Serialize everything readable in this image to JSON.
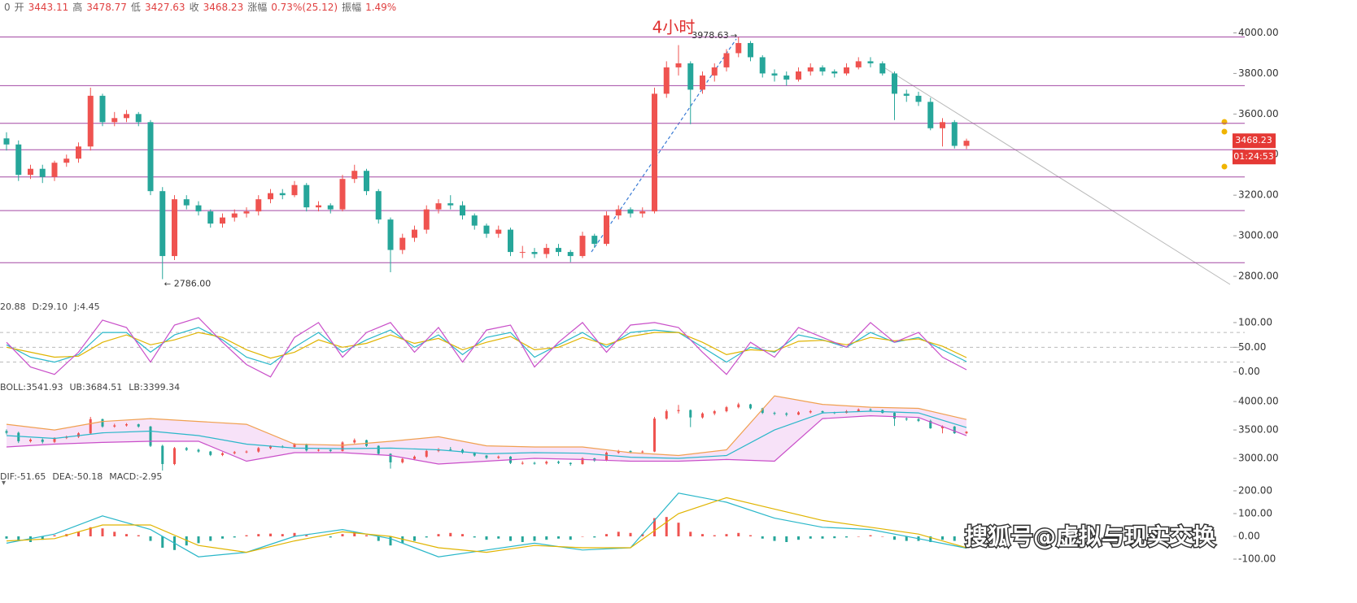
{
  "header_prefix": "0",
  "header": [
    {
      "label": "开",
      "value": 3443.11
    },
    {
      "label": "高",
      "value": 3478.77
    },
    {
      "label": "低",
      "value": 3427.63
    },
    {
      "label": "收",
      "value": 3468.23
    },
    {
      "label": "涨幅",
      "value": "0.73%(25.12)"
    },
    {
      "label": "振幅",
      "value": "1.49%"
    }
  ],
  "last_price": 3468.23,
  "countdown": "01:24:53",
  "watermark": "搜狐号@虚拟与现实交换",
  "chart_data": [
    {
      "type": "candlestick",
      "title": "4小时",
      "up_color": "#ef5350",
      "down_color": "#26a69a",
      "open": [
        3480,
        3450,
        3300,
        3330,
        3290,
        3360,
        3380,
        3440,
        3690,
        3560,
        3580,
        3600,
        3560,
        3220,
        2900,
        3180,
        3150,
        3120,
        3060,
        3090,
        3110,
        3120,
        3180,
        3210,
        3200,
        3250,
        3140,
        3150,
        3130,
        3280,
        3320,
        3220,
        3080,
        2930,
        2990,
        3030,
        3130,
        3160,
        3150,
        3100,
        3050,
        3010,
        3030,
        2920,
        2920,
        2910,
        2940,
        2920,
        2900,
        3000,
        2960,
        3100,
        3130,
        3110,
        3120,
        3700,
        3830,
        3850,
        3720,
        3790,
        3830,
        3900,
        3950,
        3880,
        3800,
        3790,
        3770,
        3810,
        3830,
        3810,
        3800,
        3830,
        3860,
        3850,
        3800,
        3700,
        3690,
        3660,
        3530,
        3560,
        3443.11
      ],
      "high": [
        3510,
        3470,
        3350,
        3350,
        3370,
        3400,
        3460,
        3730,
        3700,
        3610,
        3620,
        3610,
        3570,
        3240,
        3200,
        3200,
        3170,
        3130,
        3110,
        3130,
        3140,
        3200,
        3230,
        3230,
        3270,
        3260,
        3170,
        3160,
        3300,
        3350,
        3330,
        3230,
        3090,
        3010,
        3050,
        3150,
        3180,
        3200,
        3170,
        3110,
        3060,
        3050,
        3040,
        2950,
        2940,
        2960,
        2960,
        2930,
        3020,
        3010,
        3120,
        3150,
        3140,
        3140,
        3730,
        3860,
        3940,
        3860,
        3810,
        3850,
        3920,
        3978.63,
        3960,
        3890,
        3820,
        3810,
        3830,
        3850,
        3840,
        3820,
        3850,
        3880,
        3880,
        3860,
        3810,
        3720,
        3710,
        3680,
        3580,
        3570,
        3478.77
      ],
      "low": [
        3420,
        3270,
        3280,
        3260,
        3270,
        3340,
        3360,
        3420,
        3540,
        3540,
        3560,
        3540,
        3200,
        2786,
        2880,
        3130,
        3100,
        3040,
        3040,
        3070,
        3090,
        3100,
        3160,
        3180,
        3190,
        3120,
        3120,
        3110,
        3120,
        3260,
        3200,
        3060,
        2820,
        2910,
        2970,
        3010,
        3110,
        3130,
        3080,
        3030,
        2990,
        2990,
        2900,
        2890,
        2890,
        2890,
        2900,
        2870,
        2890,
        2940,
        2950,
        3080,
        3090,
        3090,
        3110,
        3680,
        3790,
        3550,
        3700,
        3760,
        3810,
        3880,
        3860,
        3780,
        3760,
        3740,
        3760,
        3790,
        3790,
        3780,
        3790,
        3820,
        3830,
        3790,
        3570,
        3660,
        3640,
        3520,
        3440,
        3430,
        3427.63
      ],
      "close": [
        3450,
        3300,
        3330,
        3290,
        3360,
        3380,
        3440,
        3690,
        3560,
        3580,
        3600,
        3560,
        3220,
        2900,
        3180,
        3150,
        3120,
        3060,
        3090,
        3110,
        3120,
        3180,
        3210,
        3200,
        3250,
        3140,
        3150,
        3130,
        3280,
        3320,
        3220,
        3080,
        2930,
        2990,
        3030,
        3130,
        3160,
        3150,
        3100,
        3050,
        3010,
        3030,
        2920,
        2920,
        2910,
        2940,
        2920,
        2900,
        3000,
        2960,
        3100,
        3130,
        3110,
        3120,
        3700,
        3830,
        3850,
        3720,
        3790,
        3830,
        3900,
        3950,
        3880,
        3800,
        3790,
        3770,
        3810,
        3830,
        3810,
        3800,
        3830,
        3860,
        3850,
        3800,
        3700,
        3690,
        3660,
        3530,
        3560,
        3443.11,
        3468.23
      ],
      "hlines": [
        3980,
        3740,
        3554,
        3424,
        3290,
        3124,
        2867
      ],
      "hline_color": "#a349a4",
      "annotations": [
        "3978.63",
        "2786.00"
      ],
      "ylim": [
        2720,
        4090
      ],
      "yticks": [
        {
          "value": 4000,
          "label": "4000.00"
        },
        {
          "value": 3800,
          "label": "3800.00"
        },
        {
          "value": 3600,
          "label": "3600.00"
        },
        {
          "value": 3400,
          "label": "3400.00"
        },
        {
          "value": 3200,
          "label": "3200.00"
        },
        {
          "value": 3000,
          "label": "3000.00"
        },
        {
          "value": 2800,
          "label": "2800.00"
        }
      ]
    },
    {
      "type": "line",
      "series": [
        {
          "name": "20.88",
          "color": "#2ab7c9",
          "values": [
            55,
            30,
            20,
            35,
            80,
            80,
            40,
            75,
            90,
            65,
            30,
            15,
            50,
            80,
            40,
            65,
            85,
            50,
            75,
            35,
            70,
            80,
            30,
            55,
            80,
            50,
            80,
            85,
            80,
            50,
            20,
            50,
            40,
            75,
            65,
            50,
            80,
            60,
            70,
            45,
            20.88
          ]
        },
        {
          "name": "D:29.10",
          "color": "#e0b400",
          "values": [
            50,
            40,
            30,
            32,
            60,
            75,
            55,
            65,
            80,
            70,
            45,
            28,
            40,
            65,
            50,
            58,
            75,
            58,
            68,
            45,
            60,
            72,
            45,
            50,
            70,
            55,
            72,
            80,
            80,
            60,
            35,
            45,
            42,
            62,
            64,
            55,
            70,
            63,
            67,
            52,
            29.1
          ]
        },
        {
          "name": "J:4.45",
          "color": "#c94fc9",
          "values": [
            60,
            10,
            -5,
            40,
            105,
            90,
            20,
            95,
            110,
            60,
            15,
            -10,
            70,
            100,
            30,
            80,
            100,
            40,
            90,
            20,
            85,
            95,
            10,
            60,
            100,
            40,
            95,
            100,
            90,
            40,
            -5,
            60,
            30,
            90,
            70,
            50,
            100,
            60,
            80,
            30,
            4.45
          ]
        }
      ],
      "guide_lines": [
        80,
        50,
        20
      ],
      "ylim": [
        -12,
        118
      ],
      "yticks": [
        {
          "value": 100,
          "label": "100.00"
        },
        {
          "value": 50,
          "label": "50.00"
        },
        {
          "value": 0,
          "label": "0.00"
        }
      ]
    },
    {
      "type": "band",
      "fill": "#f3d6f5",
      "series": [
        {
          "name": "BOLL:3541.93",
          "color": "#2ab7c9",
          "values": [
            3400,
            3350,
            3450,
            3480,
            3400,
            3250,
            3180,
            3170,
            3180,
            3150,
            3080,
            3100,
            3090,
            3020,
            3000,
            3050,
            3500,
            3800,
            3830,
            3800,
            3541.93
          ]
        },
        {
          "name": "UB:3684.51",
          "color": "#f0a050",
          "values": [
            3600,
            3500,
            3650,
            3700,
            3650,
            3600,
            3250,
            3230,
            3300,
            3380,
            3220,
            3200,
            3200,
            3100,
            3050,
            3150,
            4100,
            3950,
            3900,
            3880,
            3684.51
          ]
        },
        {
          "name": "LB:3399.34",
          "color": "#c94fc9",
          "values": [
            3200,
            3250,
            3280,
            3300,
            3300,
            2950,
            3100,
            3100,
            3050,
            2900,
            2950,
            3000,
            2980,
            2950,
            2950,
            2980,
            2950,
            3700,
            3750,
            3720,
            3399.34
          ]
        }
      ],
      "ylim": [
        2700,
        4130
      ],
      "yticks": [
        {
          "value": 4000,
          "label": "4000.00"
        },
        {
          "value": 3500,
          "label": "3500.00"
        },
        {
          "value": 3000,
          "label": "3000.00"
        }
      ]
    },
    {
      "type": "macd",
      "up_color": "#ef5350",
      "down_color": "#26a69a",
      "series": [
        {
          "name": "DIF:-51.65",
          "color": "#2ab7c9",
          "values": [
            -30,
            10,
            90,
            30,
            -90,
            -70,
            0,
            30,
            -10,
            -90,
            -60,
            -30,
            -60,
            -50,
            190,
            150,
            80,
            40,
            30,
            -10,
            -51.65
          ]
        },
        {
          "name": "DEA:-50.18",
          "color": "#e0b400",
          "values": [
            -20,
            -10,
            50,
            50,
            -40,
            -70,
            -20,
            20,
            0,
            -50,
            -70,
            -40,
            -50,
            -50,
            100,
            170,
            120,
            70,
            40,
            10,
            -50.18
          ]
        }
      ],
      "histogram": {
        "name": "MACD:-2.95",
        "color": "#1a9f8a",
        "values": [
          -10,
          -20,
          -25,
          -15,
          5,
          10,
          20,
          40,
          35,
          20,
          10,
          5,
          -20,
          -50,
          -60,
          -40,
          -30,
          -20,
          -10,
          -5,
          5,
          10,
          12,
          10,
          15,
          5,
          0,
          -5,
          10,
          20,
          5,
          -20,
          -40,
          -30,
          -20,
          -5,
          10,
          15,
          10,
          -5,
          -15,
          -10,
          -20,
          -25,
          -20,
          -15,
          -10,
          -15,
          0,
          -5,
          10,
          20,
          15,
          10,
          80,
          85,
          60,
          20,
          10,
          5,
          10,
          15,
          5,
          -10,
          -20,
          -25,
          -15,
          -10,
          -10,
          -8,
          -5,
          0,
          5,
          0,
          -15,
          -20,
          -20,
          -25,
          -15,
          -20,
          -2.95
        ]
      },
      "ylim": [
        -125,
        232
      ],
      "yticks": [
        {
          "value": 200,
          "label": "200.00"
        },
        {
          "value": 100,
          "label": "100.00"
        },
        {
          "value": 0,
          "label": "0.00"
        },
        {
          "value": -100,
          "label": "-100.00"
        }
      ]
    }
  ]
}
